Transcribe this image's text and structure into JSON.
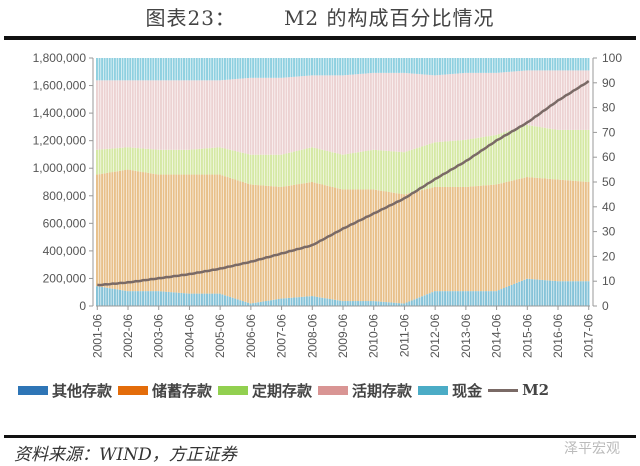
{
  "header": {
    "figure_no": "图表23：",
    "title": "M2 的构成百分比情况"
  },
  "footer": {
    "source": "资料来源：WIND，方正证券",
    "watermark": "泽平宏观"
  },
  "legend": [
    {
      "label": "其他存款",
      "color": "#2e75b6"
    },
    {
      "label": "储蓄存款",
      "color": "#e36c0a"
    },
    {
      "label": "定期存款",
      "color": "#92d050"
    },
    {
      "label": "活期存款",
      "color": "#d99594"
    },
    {
      "label": "现金",
      "color": "#4bacc6"
    },
    {
      "label": "M2",
      "color": "#7a6a66",
      "type": "line"
    }
  ],
  "colors": {
    "bottom_band": "#86c3d8",
    "savings": "#e8c08a",
    "time": "#d5e8a4",
    "demand": "#ecd2d2",
    "cash": "#8fd0e0",
    "m2_line": "#7a6a66"
  },
  "chart_data": {
    "type": "bar",
    "stacked": true,
    "title": "M2 的构成百分比情况",
    "xlabel": "",
    "ylabel_left": "",
    "ylabel_right": "",
    "left_axis": {
      "min": 0,
      "max": 1800000,
      "step": 200000,
      "ticks": [
        "0",
        "200,000",
        "400,000",
        "600,000",
        "800,000",
        "1,000,000",
        "1,200,000",
        "1,400,000",
        "1,600,000",
        "1,800,000"
      ]
    },
    "right_axis": {
      "min": 0,
      "max": 100,
      "step": 10,
      "ticks": [
        "0",
        "10",
        "20",
        "30",
        "40",
        "50",
        "60",
        "70",
        "80",
        "90",
        "100"
      ]
    },
    "categories": [
      "2001-06",
      "2002-06",
      "2003-06",
      "2004-06",
      "2005-06",
      "2006-06",
      "2007-06",
      "2008-06",
      "2009-06",
      "2010-06",
      "2011-06",
      "2012-06",
      "2013-06",
      "2014-06",
      "2015-06",
      "2016-06",
      "2017-06"
    ],
    "series": [
      {
        "name": "其他存款",
        "axis": "right",
        "unit": "%",
        "values": [
          8,
          6,
          6,
          5,
          5,
          1,
          3,
          4,
          2,
          2,
          1,
          6,
          6,
          6,
          11,
          10,
          10
        ]
      },
      {
        "name": "储蓄存款",
        "axis": "right",
        "unit": "%",
        "values": [
          45,
          49,
          47,
          48,
          48,
          48,
          45,
          46,
          45,
          45,
          44,
          42,
          42,
          43,
          41,
          41,
          40
        ]
      },
      {
        "name": "定期存款",
        "axis": "right",
        "unit": "%",
        "values": [
          10,
          9,
          10,
          10,
          11,
          12,
          13,
          14,
          14,
          16,
          17,
          18,
          19,
          20,
          21,
          20,
          21
        ]
      },
      {
        "name": "活期存款",
        "axis": "right",
        "unit": "%",
        "values": [
          28,
          27,
          28,
          28,
          27,
          31,
          31,
          29,
          32,
          31,
          32,
          27,
          27,
          25,
          22,
          24,
          24
        ]
      },
      {
        "name": "现金",
        "axis": "right",
        "unit": "%",
        "values": [
          9,
          9,
          9,
          9,
          9,
          8,
          8,
          7,
          7,
          6,
          6,
          7,
          6,
          6,
          5,
          5,
          5
        ]
      },
      {
        "name": "M2",
        "type": "line",
        "axis": "left",
        "values": [
          150000,
          170000,
          200000,
          230000,
          270000,
          320000,
          380000,
          440000,
          560000,
          670000,
          780000,
          920000,
          1050000,
          1200000,
          1330000,
          1490000,
          1630000
        ]
      }
    ],
    "grid": false,
    "legend_position": "bottom"
  }
}
